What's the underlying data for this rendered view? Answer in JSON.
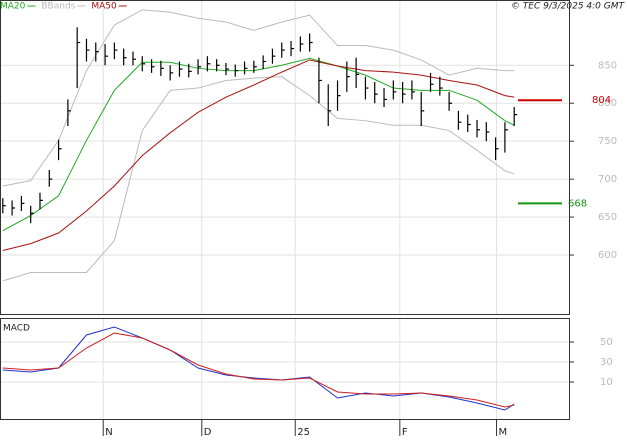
{
  "chart_data": [
    {
      "type": "ohlc",
      "source": "© TEC 9/3/2025 4:0 GMT",
      "xlim": [
        -0.6,
        122
      ],
      "xticks": [
        {
          "value": 21.6,
          "label": "N"
        },
        {
          "value": 42.8,
          "label": "D"
        },
        {
          "value": 62.9,
          "label": "25"
        },
        {
          "value": 85.4,
          "label": "F"
        },
        {
          "value": 106.2,
          "label": "M"
        }
      ],
      "ylim": [
        521,
        936
      ],
      "yticks": [
        600,
        650,
        700,
        750,
        800,
        850
      ],
      "grid": true,
      "bars": {
        "color": "#000000",
        "x": [
          0,
          2,
          4,
          6,
          8,
          10,
          12,
          14,
          16,
          18,
          20,
          22,
          24,
          26,
          28,
          30,
          32,
          34,
          36,
          38,
          40,
          42,
          44,
          46,
          48,
          50,
          52,
          54,
          56,
          58,
          60,
          62,
          64,
          66,
          68,
          70,
          72,
          74,
          76,
          78,
          80,
          82,
          84,
          86,
          88,
          90,
          92,
          94,
          96,
          98,
          100,
          102,
          104,
          106,
          108,
          110
        ],
        "high": [
          675,
          672,
          678,
          665,
          682,
          712,
          752,
          805,
          900,
          885,
          880,
          878,
          880,
          872,
          868,
          862,
          858,
          856,
          850,
          855,
          852,
          858,
          862,
          858,
          853,
          851,
          855,
          856,
          863,
          872,
          880,
          882,
          888,
          892,
          860,
          825,
          830,
          855,
          860,
          835,
          828,
          820,
          830,
          828,
          830,
          815,
          840,
          835,
          815,
          790,
          785,
          778,
          775,
          755,
          775,
          795
        ],
        "low": [
          655,
          652,
          658,
          642,
          660,
          690,
          725,
          770,
          820,
          855,
          855,
          850,
          858,
          850,
          850,
          842,
          840,
          836,
          830,
          835,
          834,
          838,
          842,
          842,
          837,
          835,
          838,
          840,
          845,
          852,
          860,
          862,
          868,
          868,
          800,
          770,
          790,
          815,
          820,
          805,
          800,
          795,
          805,
          800,
          805,
          770,
          815,
          810,
          790,
          765,
          762,
          755,
          750,
          725,
          735,
          770
        ],
        "close": [
          665,
          662,
          668,
          655,
          672,
          700,
          740,
          790,
          880,
          870,
          868,
          862,
          870,
          860,
          858,
          852,
          848,
          846,
          840,
          845,
          842,
          848,
          852,
          850,
          845,
          843,
          846,
          848,
          855,
          862,
          870,
          872,
          878,
          880,
          830,
          790,
          810,
          835,
          838,
          820,
          812,
          805,
          815,
          812,
          815,
          790,
          825,
          820,
          800,
          775,
          772,
          765,
          762,
          740,
          765,
          785
        ]
      },
      "line_x": [
        0,
        6,
        12,
        18,
        24,
        30,
        36,
        42,
        48,
        54,
        60,
        66,
        72,
        78,
        84,
        90,
        96,
        102,
        108,
        110
      ],
      "series": [
        {
          "name": "MA20",
          "color": "#22aa22",
          "values": [
            632,
            652,
            678,
            751,
            817,
            854,
            854,
            846,
            843,
            843,
            850,
            859,
            849,
            837,
            820,
            817,
            817,
            804,
            777,
            771
          ]
        },
        {
          "name": "BBands",
          "color": "#bbbbbb",
          "upper": [
            691,
            698,
            751,
            843,
            903,
            923,
            920,
            912,
            907,
            896,
            907,
            916,
            876,
            876,
            870,
            857,
            837,
            846,
            843,
            843
          ],
          "lower": [
            566,
            577,
            577,
            577,
            619,
            764,
            817,
            820,
            830,
            833,
            835,
            810,
            780,
            777,
            771,
            771,
            764,
            738,
            711,
            707
          ]
        },
        {
          "name": "MA50",
          "color": "#aa1111",
          "values": [
            606,
            615,
            629,
            658,
            691,
            731,
            761,
            788,
            808,
            824,
            841,
            857,
            849,
            843,
            841,
            837,
            830,
            824,
            810,
            808
          ]
        }
      ],
      "markers": [
        {
          "value": 804,
          "color": "#cc0000"
        },
        {
          "value": 668,
          "color": "#119911"
        }
      ]
    },
    {
      "type": "line",
      "title": "MACD",
      "xlim": [
        -0.6,
        122
      ],
      "ylim": [
        -28,
        74
      ],
      "yticks": [
        10,
        30,
        50
      ],
      "grid": true,
      "x": [
        0,
        6,
        12,
        18,
        24,
        30,
        36,
        42,
        48,
        54,
        60,
        66,
        72,
        78,
        84,
        90,
        96,
        102,
        108,
        110
      ],
      "series": [
        {
          "color": "#2233cc",
          "values": [
            22,
            20,
            24,
            57,
            65,
            54,
            42,
            24,
            17,
            14,
            12,
            15,
            -6,
            -1,
            -4,
            -1,
            -5,
            -11,
            -18,
            -12
          ]
        },
        {
          "color": "#cc2222",
          "values": [
            24,
            22,
            24,
            44,
            59,
            54,
            42,
            27,
            18,
            13,
            12,
            14,
            0,
            -2,
            -2,
            -1,
            -4,
            -8,
            -15,
            -13
          ]
        }
      ]
    }
  ]
}
